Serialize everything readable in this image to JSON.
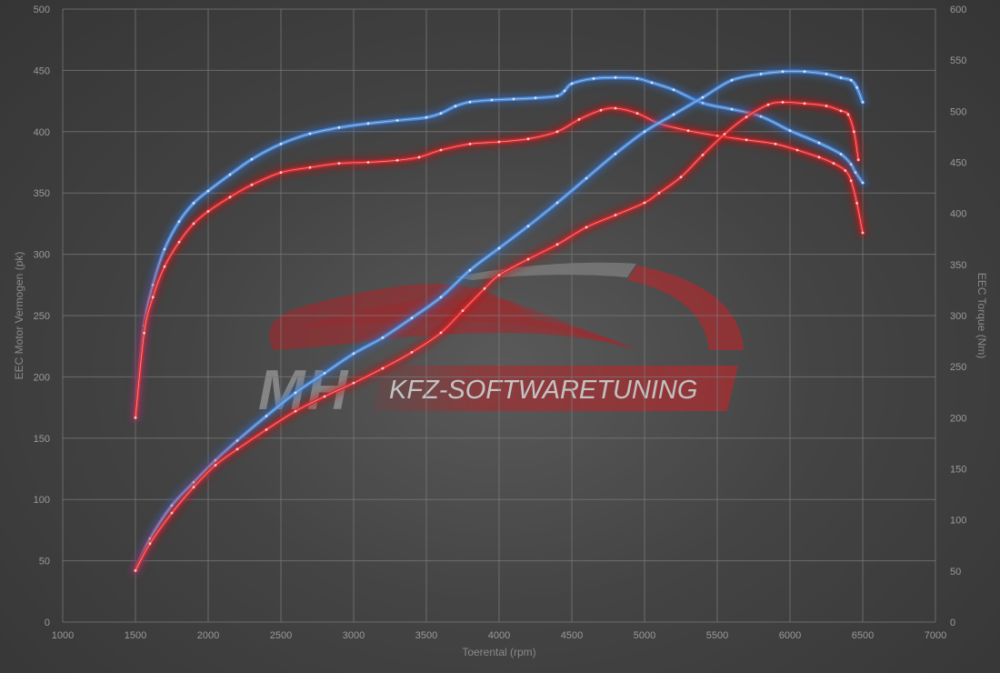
{
  "watermark": {
    "mh": "MH",
    "brand": "KFZ-SOFTWARETUNING"
  },
  "chart_data": {
    "type": "line",
    "title": "",
    "xlabel": "Toerental (rpm)",
    "ylabel_left": "EEC Motor Vermogen (pk)",
    "ylabel_right": "EEC Torque (Nm)",
    "xlim": [
      1000,
      7000
    ],
    "ylim_left": [
      0,
      500
    ],
    "ylim_right": [
      0,
      600
    ],
    "x_ticks": [
      1000,
      1500,
      2000,
      2500,
      3000,
      3500,
      4000,
      4500,
      5000,
      5500,
      6000,
      6500,
      7000
    ],
    "y_ticks_left": [
      0,
      50,
      100,
      150,
      200,
      250,
      300,
      350,
      400,
      450,
      500
    ],
    "y_ticks_right": [
      0,
      50,
      100,
      150,
      200,
      250,
      300,
      350,
      400,
      450,
      500,
      550,
      600
    ],
    "grid": true,
    "colors": {
      "tuned": "#4d8fe0",
      "stock": "#e0262b",
      "glow_tuned": "#2f6fd0",
      "glow_stock": "#d01010"
    },
    "series": [
      {
        "key": "torque_tuned",
        "axis": "right",
        "color": "tuned",
        "x": [
          1500,
          1560,
          1620,
          1700,
          1800,
          1900,
          2000,
          2150,
          2300,
          2500,
          2700,
          2900,
          3100,
          3300,
          3500,
          3600,
          3700,
          3800,
          3950,
          4100,
          4250,
          4400,
          4450,
          4500,
          4650,
          4800,
          4950,
          5050,
          5200,
          5400,
          5600,
          5800,
          6000,
          6200,
          6350,
          6420,
          6450,
          6500
        ],
        "y": [
          200,
          290,
          330,
          365,
          392,
          410,
          422,
          438,
          453,
          468,
          478,
          484,
          488,
          491,
          494,
          498,
          505,
          509,
          511,
          512,
          513,
          515,
          520,
          527,
          532,
          533,
          532,
          528,
          521,
          508,
          502,
          495,
          481,
          469,
          458,
          448,
          440,
          430
        ]
      },
      {
        "key": "torque_stock",
        "axis": "right",
        "color": "stock",
        "x": [
          1500,
          1560,
          1620,
          1700,
          1800,
          1900,
          2000,
          2150,
          2300,
          2500,
          2700,
          2900,
          3100,
          3300,
          3450,
          3600,
          3800,
          4000,
          4200,
          4400,
          4550,
          4700,
          4800,
          4950,
          5100,
          5300,
          5500,
          5700,
          5900,
          6050,
          6200,
          6300,
          6380,
          6420,
          6460,
          6500
        ],
        "y": [
          200,
          283,
          318,
          348,
          372,
          390,
          402,
          416,
          428,
          440,
          445,
          449,
          450,
          452,
          455,
          462,
          468,
          470,
          473,
          480,
          492,
          501,
          503,
          498,
          488,
          481,
          476,
          472,
          468,
          462,
          455,
          449,
          442,
          432,
          410,
          381
        ]
      },
      {
        "key": "power_tuned",
        "axis": "left",
        "color": "tuned",
        "x": [
          1500,
          1600,
          1750,
          1900,
          2050,
          2200,
          2400,
          2600,
          2800,
          3000,
          3200,
          3400,
          3600,
          3800,
          4000,
          4200,
          4400,
          4600,
          4800,
          5000,
          5200,
          5400,
          5600,
          5800,
          5950,
          6100,
          6250,
          6350,
          6420,
          6460,
          6500
        ],
        "y": [
          42,
          68,
          95,
          114,
          132,
          148,
          168,
          187,
          203,
          219,
          232,
          248,
          265,
          287,
          305,
          323,
          342,
          362,
          382,
          400,
          414,
          428,
          442,
          447,
          449,
          449,
          447,
          444,
          442,
          436,
          424
        ]
      },
      {
        "key": "power_stock",
        "axis": "left",
        "color": "stock",
        "x": [
          1500,
          1600,
          1750,
          1900,
          2050,
          2200,
          2400,
          2600,
          2800,
          3000,
          3200,
          3400,
          3600,
          3750,
          3900,
          4000,
          4200,
          4400,
          4600,
          4800,
          5000,
          5100,
          5250,
          5400,
          5550,
          5700,
          5850,
          5950,
          6100,
          6250,
          6350,
          6400,
          6440,
          6470
        ],
        "y": [
          42,
          64,
          89,
          110,
          128,
          141,
          157,
          172,
          184,
          195,
          207,
          220,
          236,
          254,
          272,
          283,
          296,
          308,
          322,
          332,
          342,
          350,
          363,
          381,
          398,
          412,
          422,
          424,
          423,
          421,
          417,
          414,
          400,
          377
        ]
      }
    ]
  }
}
